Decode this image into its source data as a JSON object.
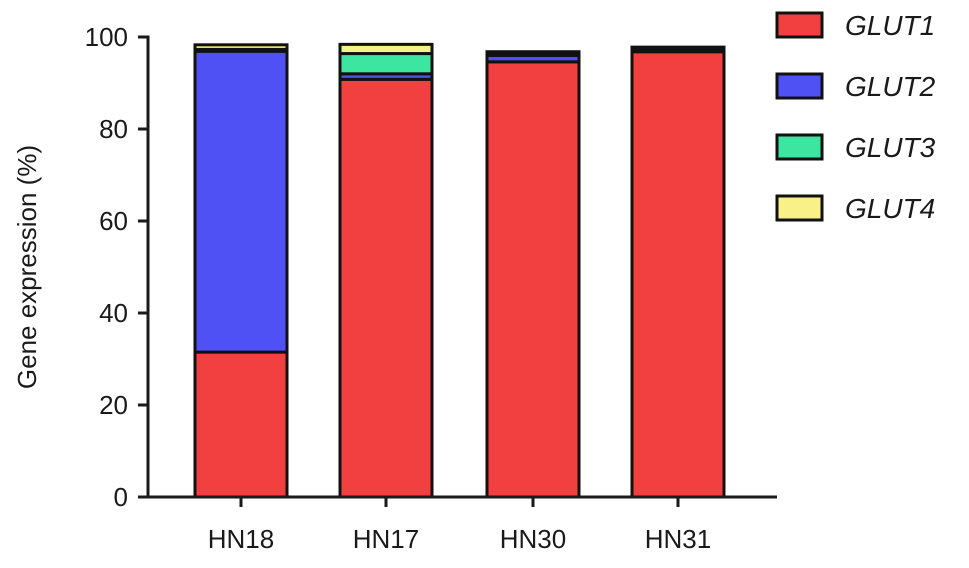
{
  "chart_data": {
    "type": "bar",
    "stacked": true,
    "categories": [
      "HN18",
      "HN17",
      "HN30",
      "HN31"
    ],
    "series": [
      {
        "name": "GLUT1",
        "color": "#f23f3f",
        "values": [
          31.5,
          90.8,
          94.6,
          96.8
        ]
      },
      {
        "name": "GLUT2",
        "color": "#4f51f5",
        "values": [
          65.4,
          1.2,
          1.4,
          0.3
        ]
      },
      {
        "name": "GLUT3",
        "color": "#3de6a0",
        "values": [
          0.4,
          4.4,
          0.5,
          0.4
        ]
      },
      {
        "name": "GLUT4",
        "color": "#f7f187",
        "values": [
          1.0,
          2.0,
          0.3,
          0.3
        ]
      }
    ],
    "title": "",
    "xlabel": "",
    "ylabel": "Gene expression (%)",
    "ylim": [
      0,
      100
    ],
    "yticks": [
      "0",
      "20",
      "40",
      "60",
      "80",
      "100"
    ],
    "grid": false,
    "legend_position": "top-right"
  }
}
